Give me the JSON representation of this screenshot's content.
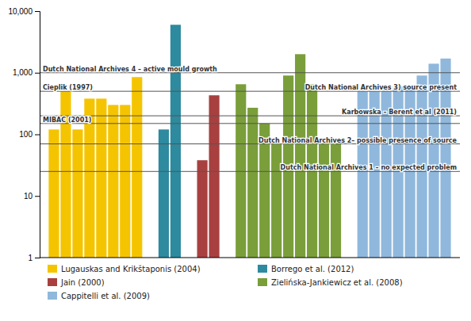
{
  "chart_data": {
    "type": "bar",
    "series": [
      {
        "name": "Lugauskas and Krikštaponis (2004)",
        "color": "#F5C400",
        "values": [
          120,
          500,
          120,
          380,
          380,
          300,
          300,
          850
        ]
      },
      {
        "name": "Borrego et al. (2012)",
        "color": "#2E8A9E",
        "values": [
          120,
          6000
        ]
      },
      {
        "name": "Jain (2000)",
        "color": "#A84040",
        "values": [
          38,
          430
        ]
      },
      {
        "name": "Zielińska-Jankiewicz et al. (2008)",
        "color": "#7A9E3A",
        "values": [
          650,
          270,
          150,
          70,
          900,
          2000,
          650,
          70,
          70
        ]
      },
      {
        "name": "Cappitelli et al. (2009)",
        "color": "#90B8DC",
        "values": [
          500,
          500,
          500,
          600,
          600,
          900,
          1400,
          1700
        ]
      }
    ],
    "hlines": [
      {
        "y": 25,
        "label_right": "Dutch National Archives 1 – no expected problem"
      },
      {
        "y": 70,
        "label_right": "Dutch National Archives 2– possible presence of source"
      },
      {
        "y": 150,
        "label_left": "MIBAC (2001)"
      },
      {
        "y": 200,
        "label_right": "Karbowska – Berent et al (2011)"
      },
      {
        "y": 500,
        "label_left": "Cieplik (1997)",
        "label_right": "Dutch National Archives 3) source present"
      },
      {
        "y": 1000,
        "label_left": "Dutch National Archives 4 – active mould growth"
      }
    ],
    "ylim": [
      1,
      10000
    ],
    "yticks": [
      1,
      10,
      100,
      {
        "value": 1000,
        "label": "1,000"
      },
      {
        "value": 10000,
        "label": "10,000"
      }
    ],
    "log": "y",
    "grid": false,
    "legend": "bottom",
    "tick_labels": "y"
  }
}
